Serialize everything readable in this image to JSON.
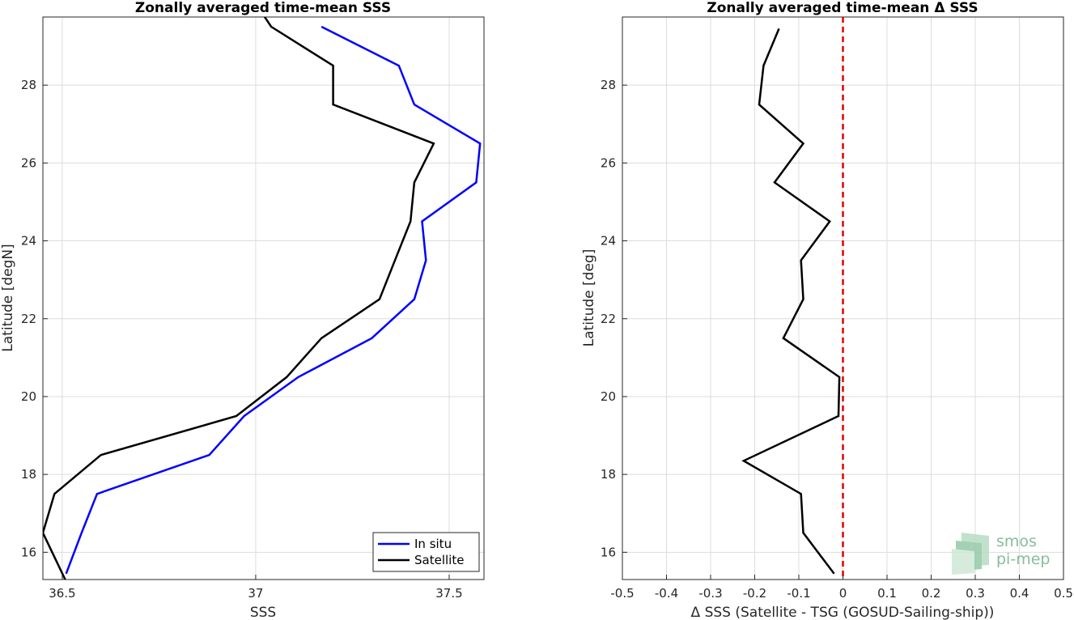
{
  "chart_data": [
    {
      "type": "line",
      "title": "Zonally averaged time-mean SSS",
      "xlabel": "SSS",
      "ylabel": "Latitude [degN]",
      "xlim": [
        36.45,
        37.59
      ],
      "ylim": [
        15.3,
        29.75
      ],
      "xticks": [
        36.5,
        37,
        37.5
      ],
      "xtick_labels": [
        "36.5",
        "37",
        "37.5"
      ],
      "yticks": [
        16,
        18,
        20,
        22,
        24,
        26,
        28
      ],
      "ytick_labels": [
        "16",
        "18",
        "20",
        "22",
        "24",
        "26",
        "28"
      ],
      "grid": true,
      "legend": "bottom-right",
      "series": [
        {
          "name": "In situ",
          "color": "#0000ff",
          "points": [
            [
              36.51,
              15.45
            ],
            [
              36.55,
              16.5
            ],
            [
              36.59,
              17.5
            ],
            [
              36.88,
              18.5
            ],
            [
              36.97,
              19.5
            ],
            [
              37.11,
              20.5
            ],
            [
              37.3,
              21.5
            ],
            [
              37.41,
              22.5
            ],
            [
              37.44,
              23.5
            ],
            [
              37.43,
              24.5
            ],
            [
              37.57,
              25.5
            ],
            [
              37.58,
              26.5
            ],
            [
              37.41,
              27.5
            ],
            [
              37.37,
              28.5
            ],
            [
              37.17,
              29.5
            ]
          ]
        },
        {
          "name": "Satellite",
          "color": "#000000",
          "points": [
            [
              36.51,
              15.25
            ],
            [
              36.45,
              16.5
            ],
            [
              36.48,
              17.5
            ],
            [
              36.6,
              18.5
            ],
            [
              36.95,
              19.5
            ],
            [
              37.08,
              20.5
            ],
            [
              37.17,
              21.5
            ],
            [
              37.32,
              22.5
            ],
            [
              37.36,
              23.5
            ],
            [
              37.4,
              24.5
            ],
            [
              37.41,
              25.5
            ],
            [
              37.46,
              26.5
            ],
            [
              37.2,
              27.5
            ],
            [
              37.2,
              28.5
            ],
            [
              37.04,
              29.5
            ],
            [
              37.02,
              29.8
            ]
          ]
        }
      ]
    },
    {
      "type": "line",
      "title": "Zonally averaged time-mean Δ SSS",
      "xlabel": "Δ SSS (Satellite - TSG (GOSUD-Sailing-ship))",
      "ylabel": "Latitude [deg]",
      "xlim": [
        -0.5,
        0.5
      ],
      "ylim": [
        15.3,
        29.75
      ],
      "xticks": [
        -0.5,
        -0.4,
        -0.3,
        -0.2,
        -0.1,
        0,
        0.1,
        0.2,
        0.3,
        0.4,
        0.5
      ],
      "xtick_labels": [
        "-0.5",
        "-0.4",
        "-0.3",
        "-0.2",
        "-0.1",
        "0",
        "0.1",
        "0.2",
        "0.3",
        "0.4",
        "0.5"
      ],
      "yticks": [
        16,
        18,
        20,
        22,
        24,
        26,
        28
      ],
      "ytick_labels": [
        "16",
        "18",
        "20",
        "22",
        "24",
        "26",
        "28"
      ],
      "grid": true,
      "reference_line": {
        "x": 0,
        "color": "#e00000",
        "style": "dashed"
      },
      "series": [
        {
          "color": "#000000",
          "points": [
            [
              -0.02,
              15.45
            ],
            [
              -0.09,
              16.5
            ],
            [
              -0.095,
              17.5
            ],
            [
              -0.225,
              18.35
            ],
            [
              -0.01,
              19.5
            ],
            [
              -0.008,
              20.5
            ],
            [
              -0.135,
              21.5
            ],
            [
              -0.09,
              22.5
            ],
            [
              -0.095,
              23.5
            ],
            [
              -0.03,
              24.5
            ],
            [
              -0.155,
              25.5
            ],
            [
              -0.09,
              26.5
            ],
            [
              -0.19,
              27.5
            ],
            [
              -0.18,
              28.5
            ],
            [
              -0.145,
              29.45
            ]
          ]
        }
      ]
    }
  ],
  "watermark": {
    "line1": "smos",
    "line2": "pi-mep",
    "color": "#6fb38a"
  }
}
